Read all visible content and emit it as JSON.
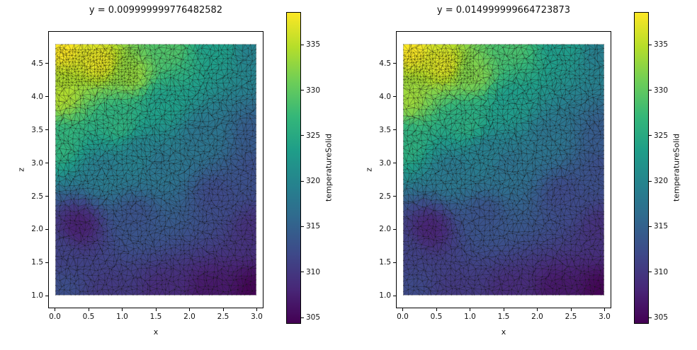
{
  "figure": {
    "background": "#ffffff",
    "text_color": "#000000"
  },
  "colormap": {
    "name": "viridis",
    "stops": [
      "#440154",
      "#482878",
      "#3e4989",
      "#31688e",
      "#26828e",
      "#1f9e89",
      "#35b779",
      "#6ece58",
      "#b5de2b",
      "#fde725"
    ]
  },
  "chart_data": [
    {
      "type": "heatmap",
      "title": "y = 0.009999999776482582",
      "xlabel": "x",
      "ylabel": "z",
      "colorbar_label": "temperatureSolid",
      "x_range": [
        0.0,
        3.0
      ],
      "z_range": [
        1.0,
        4.8
      ],
      "xlim": [
        -0.1,
        3.1
      ],
      "zlim": [
        0.81,
        4.99
      ],
      "vmin": 304.3,
      "vmax": 338.6,
      "x_ticks": [
        {
          "v": 0.0,
          "label": "0.0"
        },
        {
          "v": 0.5,
          "label": "0.5"
        },
        {
          "v": 1.0,
          "label": "1.0"
        },
        {
          "v": 1.5,
          "label": "1.5"
        },
        {
          "v": 2.0,
          "label": "2.0"
        },
        {
          "v": 2.5,
          "label": "2.5"
        },
        {
          "v": 3.0,
          "label": "3.0"
        }
      ],
      "z_ticks": [
        {
          "v": 1.0,
          "label": "1.0"
        },
        {
          "v": 1.5,
          "label": "1.5"
        },
        {
          "v": 2.0,
          "label": "2.0"
        },
        {
          "v": 2.5,
          "label": "2.5"
        },
        {
          "v": 3.0,
          "label": "3.0"
        },
        {
          "v": 3.5,
          "label": "3.5"
        },
        {
          "v": 4.0,
          "label": "4.0"
        },
        {
          "v": 4.5,
          "label": "4.5"
        }
      ],
      "colorbar_ticks": [
        {
          "v": 305,
          "label": "305"
        },
        {
          "v": 310,
          "label": "310"
        },
        {
          "v": 315,
          "label": "315"
        },
        {
          "v": 320,
          "label": "320"
        },
        {
          "v": 325,
          "label": "325"
        },
        {
          "v": 330,
          "label": "330"
        },
        {
          "v": 335,
          "label": "335"
        }
      ],
      "temperature_field_samples": [
        [
          0.1,
          4.75,
          338.6
        ],
        [
          0.65,
          4.55,
          337.5
        ],
        [
          1.15,
          4.35,
          333.0
        ],
        [
          0.05,
          4.05,
          334.5
        ],
        [
          1.7,
          4.75,
          329.0
        ],
        [
          2.4,
          4.8,
          323.5
        ],
        [
          3.0,
          4.65,
          319.5
        ],
        [
          0.02,
          3.3,
          326.5
        ],
        [
          0.95,
          3.6,
          326.0
        ],
        [
          1.6,
          3.9,
          323.5
        ],
        [
          2.2,
          3.4,
          317.5
        ],
        [
          3.0,
          3.4,
          314.0
        ],
        [
          0.75,
          2.85,
          318.5
        ],
        [
          1.55,
          2.95,
          317.5
        ],
        [
          1.25,
          3.15,
          319.5
        ],
        [
          2.4,
          2.5,
          312.0
        ],
        [
          0.35,
          2.05,
          307.5
        ],
        [
          0.02,
          1.65,
          311.0
        ],
        [
          1.2,
          2.2,
          313.0
        ],
        [
          0.02,
          1.02,
          312.5
        ],
        [
          0.8,
          1.02,
          310.0
        ],
        [
          1.6,
          1.02,
          308.5
        ],
        [
          2.3,
          1.02,
          306.5
        ],
        [
          3.0,
          1.02,
          304.5
        ],
        [
          3.0,
          2.0,
          309.0
        ],
        [
          3.0,
          2.9,
          312.5
        ]
      ]
    },
    {
      "type": "heatmap",
      "title": "y = 0.014999999664723873",
      "xlabel": "x",
      "ylabel": "z",
      "colorbar_label": "temperatureSolid",
      "x_range": [
        0.0,
        3.0
      ],
      "z_range": [
        1.0,
        4.8
      ],
      "xlim": [
        -0.1,
        3.1
      ],
      "zlim": [
        0.81,
        4.99
      ],
      "vmin": 304.3,
      "vmax": 338.6,
      "x_ticks": [
        {
          "v": 0.0,
          "label": "0.0"
        },
        {
          "v": 0.5,
          "label": "0.5"
        },
        {
          "v": 1.0,
          "label": "1.0"
        },
        {
          "v": 1.5,
          "label": "1.5"
        },
        {
          "v": 2.0,
          "label": "2.0"
        },
        {
          "v": 2.5,
          "label": "2.5"
        },
        {
          "v": 3.0,
          "label": "3.0"
        }
      ],
      "z_ticks": [
        {
          "v": 1.0,
          "label": "1.0"
        },
        {
          "v": 1.5,
          "label": "1.5"
        },
        {
          "v": 2.0,
          "label": "2.0"
        },
        {
          "v": 2.5,
          "label": "2.5"
        },
        {
          "v": 3.0,
          "label": "3.0"
        },
        {
          "v": 3.5,
          "label": "3.5"
        },
        {
          "v": 4.0,
          "label": "4.0"
        },
        {
          "v": 4.5,
          "label": "4.5"
        }
      ],
      "colorbar_ticks": [
        {
          "v": 305,
          "label": "305"
        },
        {
          "v": 310,
          "label": "310"
        },
        {
          "v": 315,
          "label": "315"
        },
        {
          "v": 320,
          "label": "320"
        },
        {
          "v": 325,
          "label": "325"
        },
        {
          "v": 330,
          "label": "330"
        },
        {
          "v": 335,
          "label": "335"
        }
      ],
      "temperature_field_samples": [
        [
          0.1,
          4.72,
          338.4
        ],
        [
          0.6,
          4.5,
          337.0
        ],
        [
          1.05,
          4.35,
          332.0
        ],
        [
          0.05,
          4.0,
          333.5
        ],
        [
          1.65,
          4.75,
          328.5
        ],
        [
          2.4,
          4.8,
          323.0
        ],
        [
          3.0,
          4.65,
          319.0
        ],
        [
          0.02,
          3.3,
          326.0
        ],
        [
          0.95,
          3.6,
          325.5
        ],
        [
          1.6,
          3.9,
          323.0
        ],
        [
          2.2,
          3.4,
          317.5
        ],
        [
          3.0,
          3.4,
          314.0
        ],
        [
          0.75,
          2.85,
          318.0
        ],
        [
          1.55,
          2.95,
          317.0
        ],
        [
          1.25,
          3.15,
          319.0
        ],
        [
          2.4,
          2.5,
          312.0
        ],
        [
          0.4,
          2.0,
          307.8
        ],
        [
          0.02,
          1.65,
          311.0
        ],
        [
          1.2,
          2.2,
          313.0
        ],
        [
          0.02,
          1.02,
          312.0
        ],
        [
          0.8,
          1.02,
          310.0
        ],
        [
          1.6,
          1.02,
          308.5
        ],
        [
          2.3,
          1.02,
          306.5
        ],
        [
          3.0,
          1.02,
          304.6
        ],
        [
          3.0,
          2.0,
          309.0
        ],
        [
          3.0,
          2.9,
          312.5
        ]
      ]
    }
  ]
}
